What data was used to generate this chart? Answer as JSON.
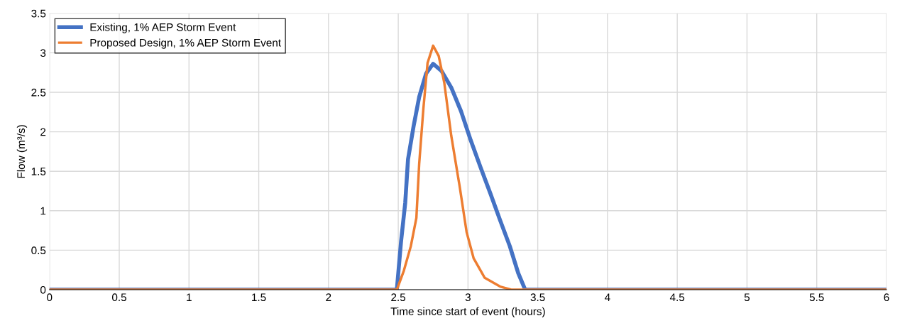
{
  "chart_data": {
    "type": "line",
    "xlabel": "Time since start of event (hours)",
    "ylabel": "Flow (m³/s)",
    "xlim": [
      0,
      6
    ],
    "xticks": [
      0,
      0.5,
      1,
      1.5,
      2,
      2.5,
      3,
      3.5,
      4,
      4.5,
      5,
      5.5,
      6
    ],
    "ylim": [
      0,
      3.5
    ],
    "yticks": [
      0,
      0.5,
      1,
      1.5,
      2,
      2.5,
      3,
      3.5
    ],
    "grid": true,
    "legend": "top left",
    "marker": "none",
    "line_style": "solid",
    "series": [
      {
        "name": "Existing, 1% AEP Storm Event",
        "color": "#4472c4",
        "x": [
          0,
          2.49,
          2.52,
          2.55,
          2.57,
          2.61,
          2.65,
          2.7,
          2.75,
          2.81,
          2.88,
          2.95,
          3.02,
          3.09,
          3.16,
          3.23,
          3.3,
          3.36,
          3.41,
          6
        ],
        "values": [
          0,
          0,
          0.61,
          1.1,
          1.65,
          2.07,
          2.44,
          2.74,
          2.86,
          2.77,
          2.56,
          2.26,
          1.89,
          1.55,
          1.22,
          0.88,
          0.55,
          0.21,
          0,
          0
        ]
      },
      {
        "name": "Proposed Design, 1% AEP Storm Event",
        "color": "#ed7d31",
        "x": [
          0,
          2.49,
          2.54,
          2.59,
          2.63,
          2.65,
          2.68,
          2.71,
          2.75,
          2.79,
          2.83,
          2.88,
          2.94,
          2.99,
          3.04,
          3.12,
          3.23,
          3.31,
          6
        ],
        "values": [
          0,
          0,
          0.24,
          0.55,
          0.91,
          1.59,
          2.29,
          2.87,
          3.09,
          2.96,
          2.62,
          1.95,
          1.31,
          0.73,
          0.4,
          0.15,
          0.04,
          0,
          0
        ]
      }
    ]
  }
}
